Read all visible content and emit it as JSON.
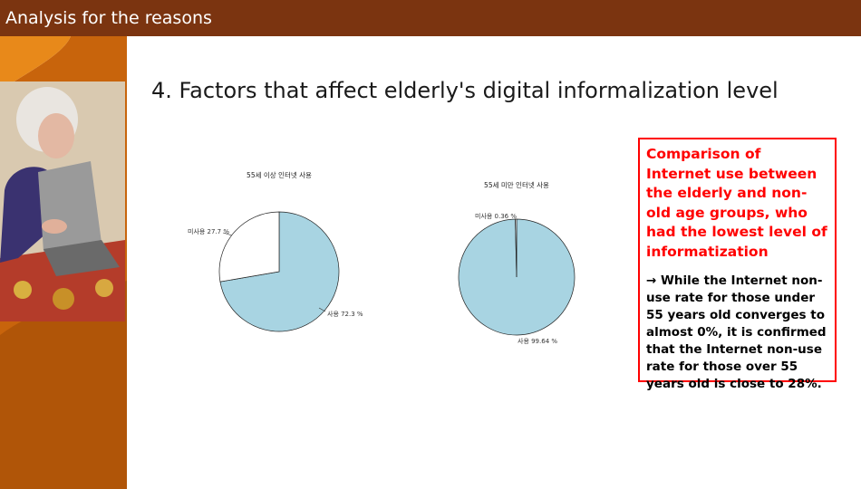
{
  "header": {
    "title": "Analysis for the reasons"
  },
  "slide": {
    "title": "4. Factors that affect elderly's digital informalization level"
  },
  "colors": {
    "header_bg": "#7b3410",
    "accent_orange": "#d4720e",
    "pie_used": "#a8d4e2",
    "pie_unused": "#ffffff",
    "callout_border": "#ff0000",
    "callout_heading": "#ff0000"
  },
  "photo": {
    "icon": "elderly-woman-laptop-photo"
  },
  "chart_data": [
    {
      "type": "pie",
      "title": "55세 이상 인터넷 사용",
      "slices": [
        {
          "label": "사용 72.3 %",
          "value": 72.3,
          "color": "#a8d4e2"
        },
        {
          "label": "미사용 27.7 %",
          "value": 27.7,
          "color": "#ffffff"
        }
      ]
    },
    {
      "type": "pie",
      "title": "55세 미만 인터넷 사용",
      "slices": [
        {
          "label": "사용 99.64 %",
          "value": 99.64,
          "color": "#a8d4e2"
        },
        {
          "label": "미사용 0.36 %",
          "value": 0.36,
          "color": "#ffffff"
        }
      ]
    }
  ],
  "callout": {
    "heading": "Comparison of Internet use between the elderly and non-old age groups, who had the lowest level of informatization",
    "body": "→ While the Internet non-use rate for those under 55 years old converges to almost 0%, it is confirmed that the Internet non-use rate for those over 55 years old is close to 28%."
  }
}
